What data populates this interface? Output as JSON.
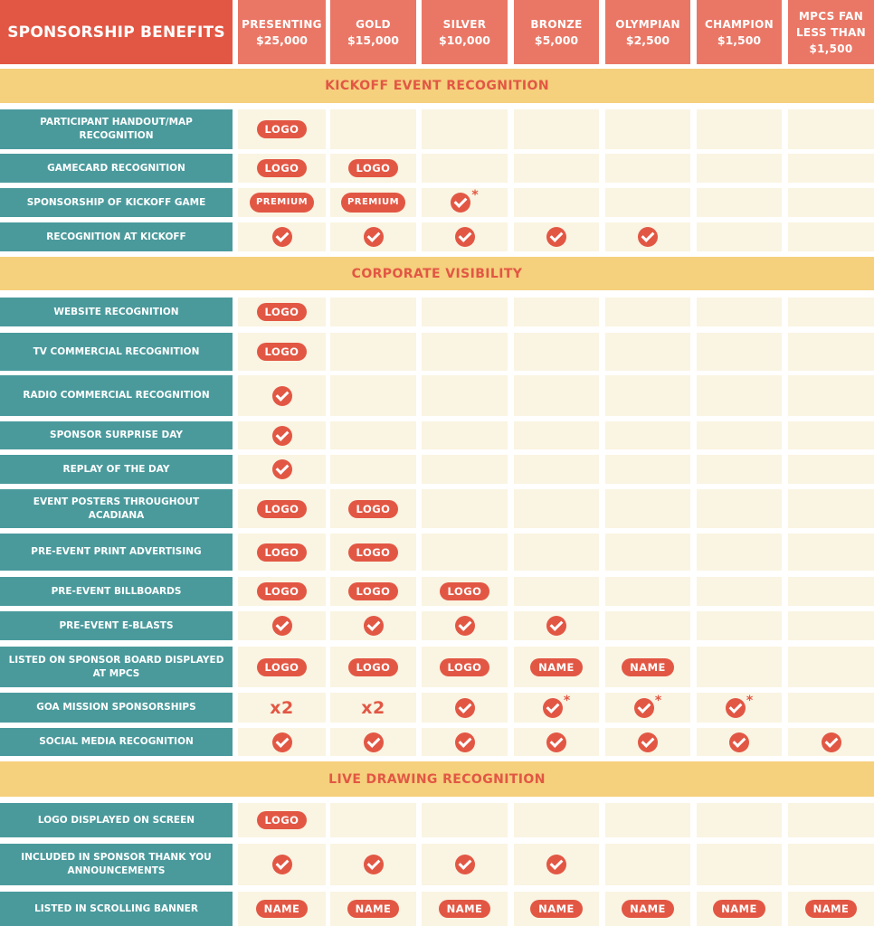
{
  "table_title": "SPONSORSHIP BENEFITS",
  "tiers": [
    {
      "name": "PRESENTING",
      "price": "$25,000"
    },
    {
      "name": "GOLD",
      "price": "$15,000"
    },
    {
      "name": "SILVER",
      "price": "$10,000"
    },
    {
      "name": "BRONZE",
      "price": "$5,000"
    },
    {
      "name": "OLYMPIAN",
      "price": "$2,500"
    },
    {
      "name": "CHAMPION",
      "price": "$1,500"
    },
    {
      "lines": [
        "MPCS FAN",
        "LESS THAN",
        "$1,500"
      ]
    }
  ],
  "colors": {
    "title_bg": "#e25744",
    "tier_bg": "#ea7766",
    "section_bg": "#f5d07d",
    "section_text": "#e25744",
    "label_bg": "#4a9a9c",
    "cell_bg": "#faf4e2",
    "badge": "#e25744"
  },
  "sections": [
    {
      "title": "KICKOFF EVENT RECOGNITION",
      "rows": [
        {
          "label": "PARTICIPANT HANDOUT/MAP RECOGNITION",
          "values": [
            "LOGO",
            "",
            "",
            "",
            "",
            "",
            ""
          ]
        },
        {
          "label": "GAMECARD RECOGNITION",
          "values": [
            "LOGO",
            "LOGO",
            "",
            "",
            "",
            "",
            ""
          ]
        },
        {
          "label": "SPONSORSHIP OF KICKOFF GAME",
          "values": [
            "PREMIUM",
            "PREMIUM",
            "check*",
            "",
            "",
            "",
            ""
          ]
        },
        {
          "label": "RECOGNITION AT KICKOFF",
          "values": [
            "check",
            "check",
            "check",
            "check",
            "check",
            "",
            ""
          ]
        }
      ]
    },
    {
      "title": "CORPORATE VISIBILITY",
      "rows": [
        {
          "label": "WEBSITE RECOGNITION",
          "values": [
            "LOGO",
            "",
            "",
            "",
            "",
            "",
            ""
          ]
        },
        {
          "label": "TV COMMERCIAL RECOGNITION",
          "values": [
            "LOGO",
            "",
            "",
            "",
            "",
            "",
            ""
          ]
        },
        {
          "label": "RADIO COMMERCIAL RECOGNITION",
          "values": [
            "check",
            "",
            "",
            "",
            "",
            "",
            ""
          ]
        },
        {
          "label": "SPONSOR SURPRISE DAY",
          "values": [
            "check",
            "",
            "",
            "",
            "",
            "",
            ""
          ]
        },
        {
          "label": "REPLAY OF THE DAY",
          "values": [
            "check",
            "",
            "",
            "",
            "",
            "",
            ""
          ]
        },
        {
          "label": "EVENT POSTERS THROUGHOUT ACADIANA",
          "values": [
            "LOGO",
            "LOGO",
            "",
            "",
            "",
            "",
            ""
          ]
        },
        {
          "label": "PRE-EVENT PRINT ADVERTISING",
          "values": [
            "LOGO",
            "LOGO",
            "",
            "",
            "",
            "",
            ""
          ]
        },
        {
          "label": "PRE-EVENT BILLBOARDS",
          "values": [
            "LOGO",
            "LOGO",
            "LOGO",
            "",
            "",
            "",
            ""
          ]
        },
        {
          "label": "PRE-EVENT E-BLASTS",
          "values": [
            "check",
            "check",
            "check",
            "check",
            "",
            "",
            ""
          ]
        },
        {
          "label": "LISTED ON SPONSOR BOARD DISPLAYED AT MPCS",
          "values": [
            "LOGO",
            "LOGO",
            "LOGO",
            "NAME",
            "NAME",
            "",
            ""
          ]
        },
        {
          "label": "GOA MISSION SPONSORSHIPS",
          "values": [
            "x2",
            "x2",
            "check",
            "check*",
            "check*",
            "check*",
            ""
          ]
        },
        {
          "label": "SOCIAL MEDIA RECOGNITION",
          "values": [
            "check",
            "check",
            "check",
            "check",
            "check",
            "check",
            "check"
          ]
        }
      ]
    },
    {
      "title": "LIVE DRAWING RECOGNITION",
      "rows": [
        {
          "label": "LOGO DISPLAYED ON SCREEN",
          "values": [
            "LOGO",
            "",
            "",
            "",
            "",
            "",
            ""
          ]
        },
        {
          "label": "INCLUDED IN SPONSOR THANK YOU ANNOUNCEMENTS",
          "values": [
            "check",
            "check",
            "check",
            "check",
            "",
            "",
            ""
          ]
        },
        {
          "label": "LISTED IN SCROLLING BANNER",
          "values": [
            "NAME",
            "NAME",
            "NAME",
            "NAME",
            "NAME",
            "NAME",
            "NAME"
          ]
        }
      ]
    }
  ]
}
